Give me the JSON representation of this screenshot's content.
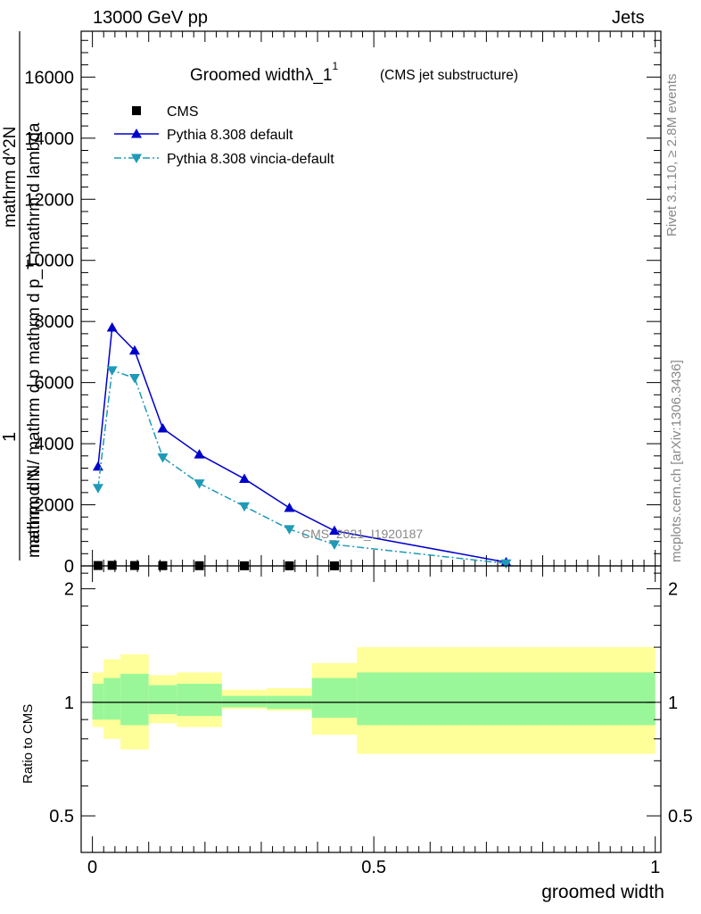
{
  "header": {
    "left": "13000 GeV pp",
    "right": "Jets"
  },
  "side_labels": {
    "rivet": "Rivet 3.1.10, ≥ 2.8M events",
    "mcplots": "mcplots.cern.ch [arXiv:1306.3436]"
  },
  "chart_data": [
    {
      "type": "line",
      "title": "Groomed widthλ_1",
      "title_superscript": "1",
      "subtitle": "(CMS jet substructure)",
      "watermark": "CMS_2021_I1920187",
      "ylabel_numerator": "1",
      "ylabel_denominator": "mathrm d N",
      "ylabel_main": "mathrm d N / mathrm d p mathrm d p_T mathrm d lambda",
      "ylabel_top": "mathrm d^2N",
      "xlim": [
        -0.02,
        1.01
      ],
      "ylim": [
        0,
        17500
      ],
      "y_ticks": [
        0,
        2000,
        4000,
        6000,
        8000,
        10000,
        12000,
        14000,
        16000
      ],
      "y_tick_labels": [
        "0",
        "2000",
        "4000",
        "6000",
        "8000",
        "10000",
        "12000",
        "14000",
        "16000"
      ],
      "series": [
        {
          "name": "CMS",
          "marker": "square",
          "color": "#000000",
          "x": [
            0.01,
            0.035,
            0.075,
            0.125,
            0.19,
            0.27,
            0.35,
            0.43
          ],
          "y": [
            12,
            18,
            12,
            8,
            6,
            4,
            3,
            2
          ]
        },
        {
          "name": "Pythia 8.308 default",
          "marker": "triangle-up",
          "color": "#0000cc",
          "line": "solid",
          "x": [
            0.01,
            0.035,
            0.075,
            0.125,
            0.19,
            0.27,
            0.35,
            0.43,
            0.735
          ],
          "y": [
            3250,
            7800,
            7050,
            4500,
            3650,
            2850,
            1900,
            1150,
            120
          ]
        },
        {
          "name": "Pythia 8.308 vincia-default",
          "marker": "triangle-down",
          "color": "#1e9ab8",
          "line": "dashdot",
          "x": [
            0.01,
            0.035,
            0.075,
            0.125,
            0.19,
            0.27,
            0.35,
            0.43,
            0.735
          ],
          "y": [
            2550,
            6400,
            6150,
            3550,
            2700,
            1950,
            1200,
            700,
            80
          ]
        }
      ]
    },
    {
      "type": "area",
      "ylabel": "Ratio to CMS",
      "xlabel": "groomed width",
      "xlim": [
        -0.02,
        1.01
      ],
      "ylim": [
        0.4,
        2.3
      ],
      "y_scale": "log",
      "y_ticks": [
        0.5,
        1,
        2
      ],
      "y_tick_labels": [
        "0.5",
        "1",
        "2"
      ],
      "x_ticks": [
        0,
        0.5,
        1
      ],
      "x_tick_labels": [
        "0",
        "0.5",
        "1"
      ],
      "bins": [
        {
          "x0": 0.0,
          "x1": 0.02,
          "stat_up": 1.12,
          "stat_down": 0.9,
          "tot_up": 1.2,
          "tot_down": 0.86
        },
        {
          "x0": 0.02,
          "x1": 0.05,
          "stat_up": 1.16,
          "stat_down": 0.9,
          "tot_up": 1.3,
          "tot_down": 0.8
        },
        {
          "x0": 0.05,
          "x1": 0.1,
          "stat_up": 1.19,
          "stat_down": 0.87,
          "tot_up": 1.34,
          "tot_down": 0.75
        },
        {
          "x0": 0.1,
          "x1": 0.15,
          "stat_up": 1.11,
          "stat_down": 0.93,
          "tot_up": 1.18,
          "tot_down": 0.88
        },
        {
          "x0": 0.15,
          "x1": 0.23,
          "stat_up": 1.12,
          "stat_down": 0.92,
          "tot_up": 1.2,
          "tot_down": 0.86
        },
        {
          "x0": 0.23,
          "x1": 0.31,
          "stat_up": 1.04,
          "stat_down": 0.97,
          "tot_up": 1.08,
          "tot_down": 0.96
        },
        {
          "x0": 0.31,
          "x1": 0.39,
          "stat_up": 1.04,
          "stat_down": 0.96,
          "tot_up": 1.09,
          "tot_down": 0.95
        },
        {
          "x0": 0.39,
          "x1": 0.47,
          "stat_up": 1.16,
          "stat_down": 0.91,
          "tot_up": 1.27,
          "tot_down": 0.82
        },
        {
          "x0": 0.47,
          "x1": 1.0,
          "stat_up": 1.2,
          "stat_down": 0.87,
          "tot_up": 1.4,
          "tot_down": 0.73
        }
      ],
      "colors": {
        "stat": "#99f799",
        "total": "#ffff99",
        "reference_line": "#000000"
      }
    }
  ]
}
